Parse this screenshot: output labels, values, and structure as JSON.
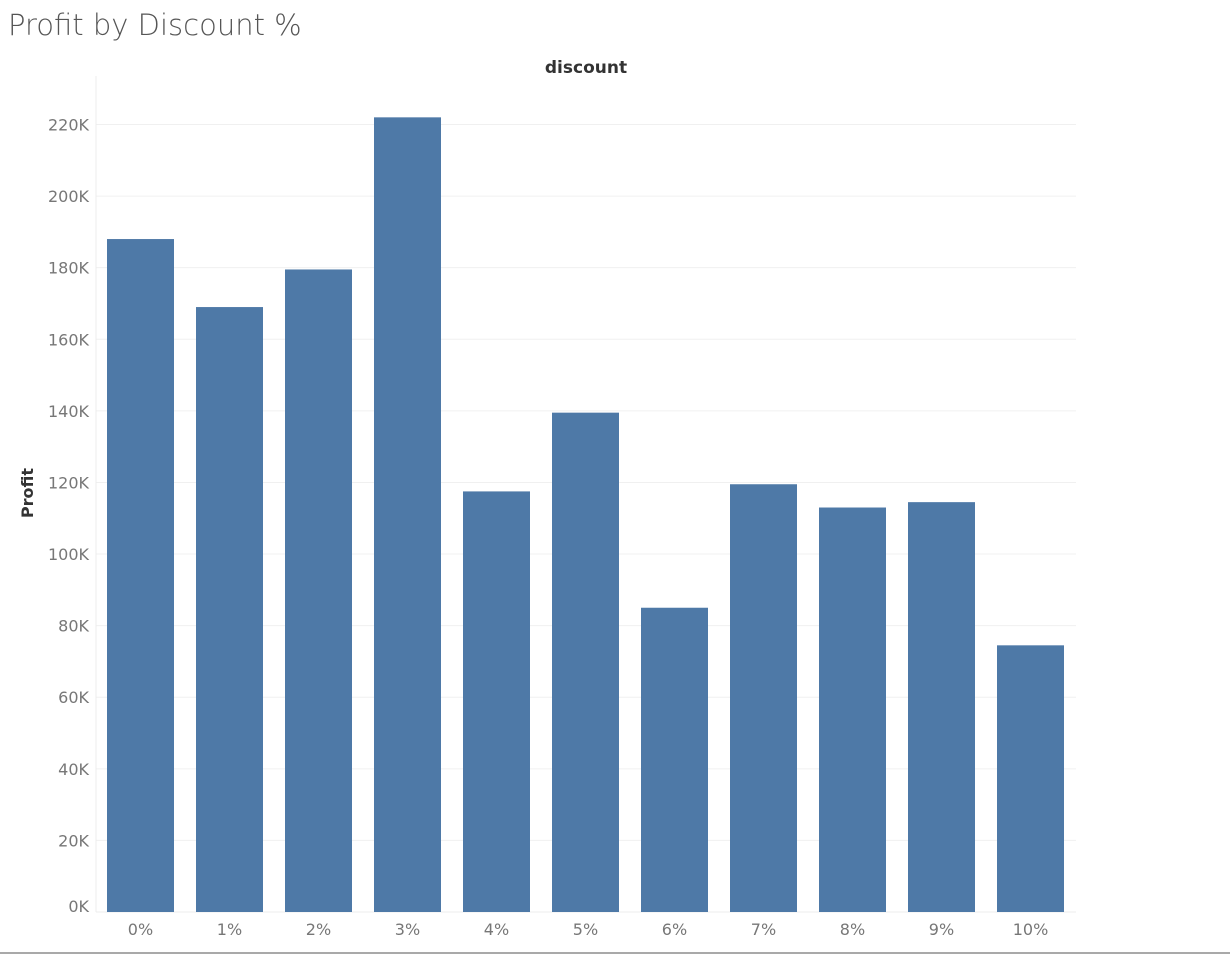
{
  "chart_data": {
    "type": "bar",
    "title": "Profit by Discount %",
    "column_header": "discount",
    "ylabel": "Profit",
    "xlabel": "",
    "categories": [
      "0%",
      "1%",
      "2%",
      "3%",
      "4%",
      "5%",
      "6%",
      "7%",
      "8%",
      "9%",
      "10%"
    ],
    "values": [
      188000,
      169000,
      179500,
      222000,
      117500,
      139500,
      85000,
      119500,
      113000,
      114500,
      74500
    ],
    "ylim": [
      0,
      232000
    ],
    "yticks": [
      0,
      20000,
      40000,
      60000,
      80000,
      100000,
      120000,
      140000,
      160000,
      180000,
      200000,
      220000
    ],
    "ytick_labels": [
      "0K",
      "20K",
      "40K",
      "60K",
      "80K",
      "100K",
      "120K",
      "140K",
      "160K",
      "180K",
      "200K",
      "220K"
    ],
    "grid": true,
    "bar_color": "#4e79a7"
  }
}
